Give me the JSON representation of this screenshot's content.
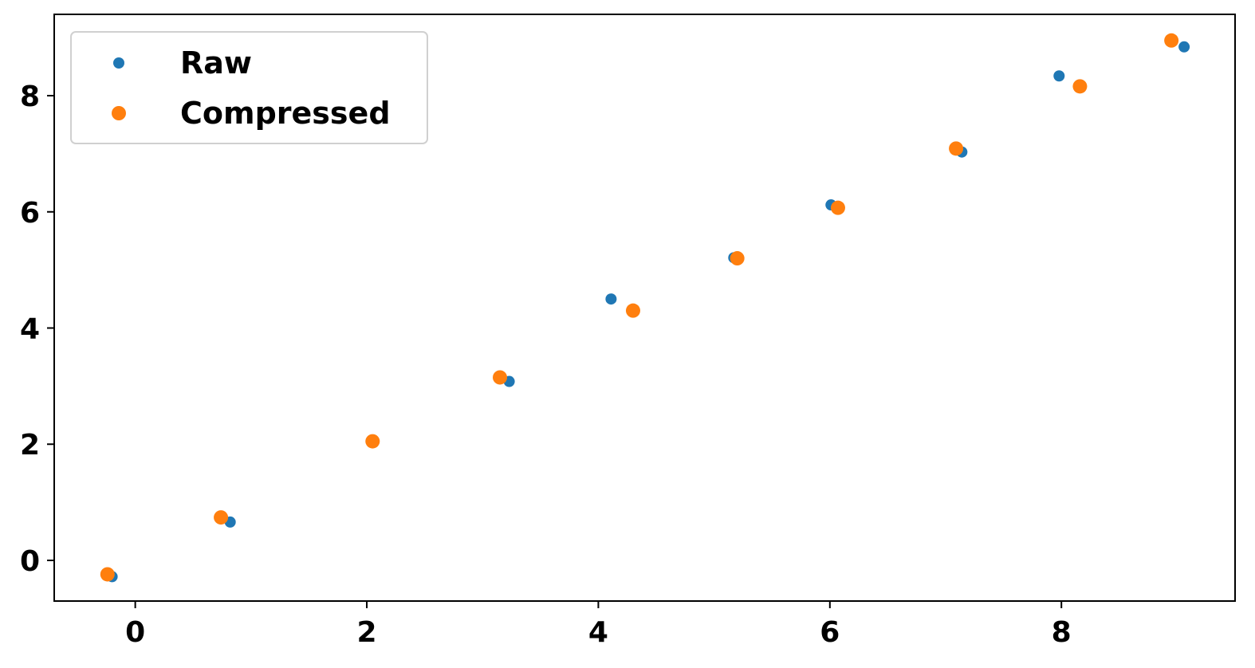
{
  "chart_data": {
    "type": "scatter",
    "title": "",
    "xlabel": "",
    "ylabel": "",
    "xlim": [
      -0.7,
      9.5
    ],
    "ylim": [
      -0.7,
      9.4
    ],
    "x_ticks": [
      0,
      2,
      4,
      6,
      8
    ],
    "y_ticks": [
      0,
      2,
      4,
      6,
      8
    ],
    "x_tick_labels": [
      "0",
      "2",
      "4",
      "6",
      "8"
    ],
    "y_tick_labels": [
      "0",
      "2",
      "4",
      "6",
      "8"
    ],
    "grid": false,
    "legend_position": "top-left",
    "series": [
      {
        "name": "Raw",
        "color": "#1f77b4",
        "marker": "small-circle",
        "points": [
          {
            "x": -0.2,
            "y": -0.28
          },
          {
            "x": 0.82,
            "y": 0.66
          },
          {
            "x": 2.05,
            "y": 2.05
          },
          {
            "x": 3.23,
            "y": 3.08
          },
          {
            "x": 4.11,
            "y": 4.5
          },
          {
            "x": 5.17,
            "y": 5.21
          },
          {
            "x": 6.01,
            "y": 6.12
          },
          {
            "x": 7.14,
            "y": 7.03
          },
          {
            "x": 7.98,
            "y": 8.34
          },
          {
            "x": 9.06,
            "y": 8.84
          }
        ]
      },
      {
        "name": "Compressed",
        "color": "#ff7f0e",
        "marker": "large-circle",
        "points": [
          {
            "x": -0.24,
            "y": -0.24
          },
          {
            "x": 0.74,
            "y": 0.74
          },
          {
            "x": 2.05,
            "y": 2.05
          },
          {
            "x": 3.15,
            "y": 3.15
          },
          {
            "x": 4.3,
            "y": 4.3
          },
          {
            "x": 5.2,
            "y": 5.2
          },
          {
            "x": 6.07,
            "y": 6.07
          },
          {
            "x": 7.09,
            "y": 7.09
          },
          {
            "x": 8.16,
            "y": 8.16
          },
          {
            "x": 8.95,
            "y": 8.95
          }
        ]
      }
    ]
  }
}
